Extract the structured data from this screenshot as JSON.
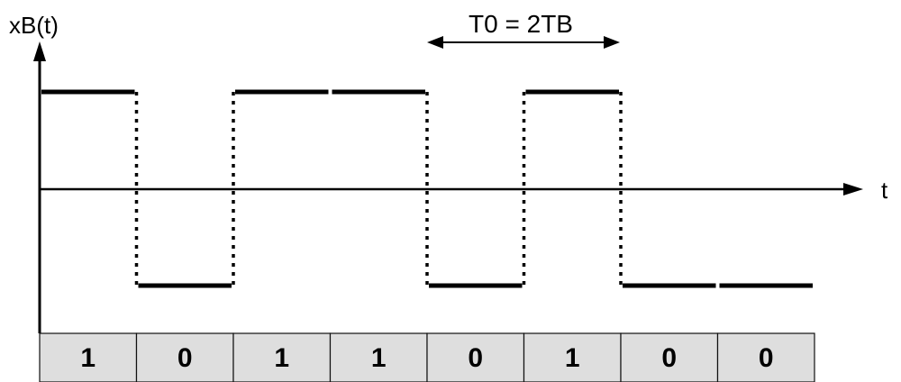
{
  "diagram": {
    "y_axis_label": "xB(t)",
    "x_axis_label": "t",
    "period_label": "T0 = 2TB",
    "bits": [
      "1",
      "0",
      "1",
      "1",
      "0",
      "1",
      "0",
      "0"
    ]
  }
}
